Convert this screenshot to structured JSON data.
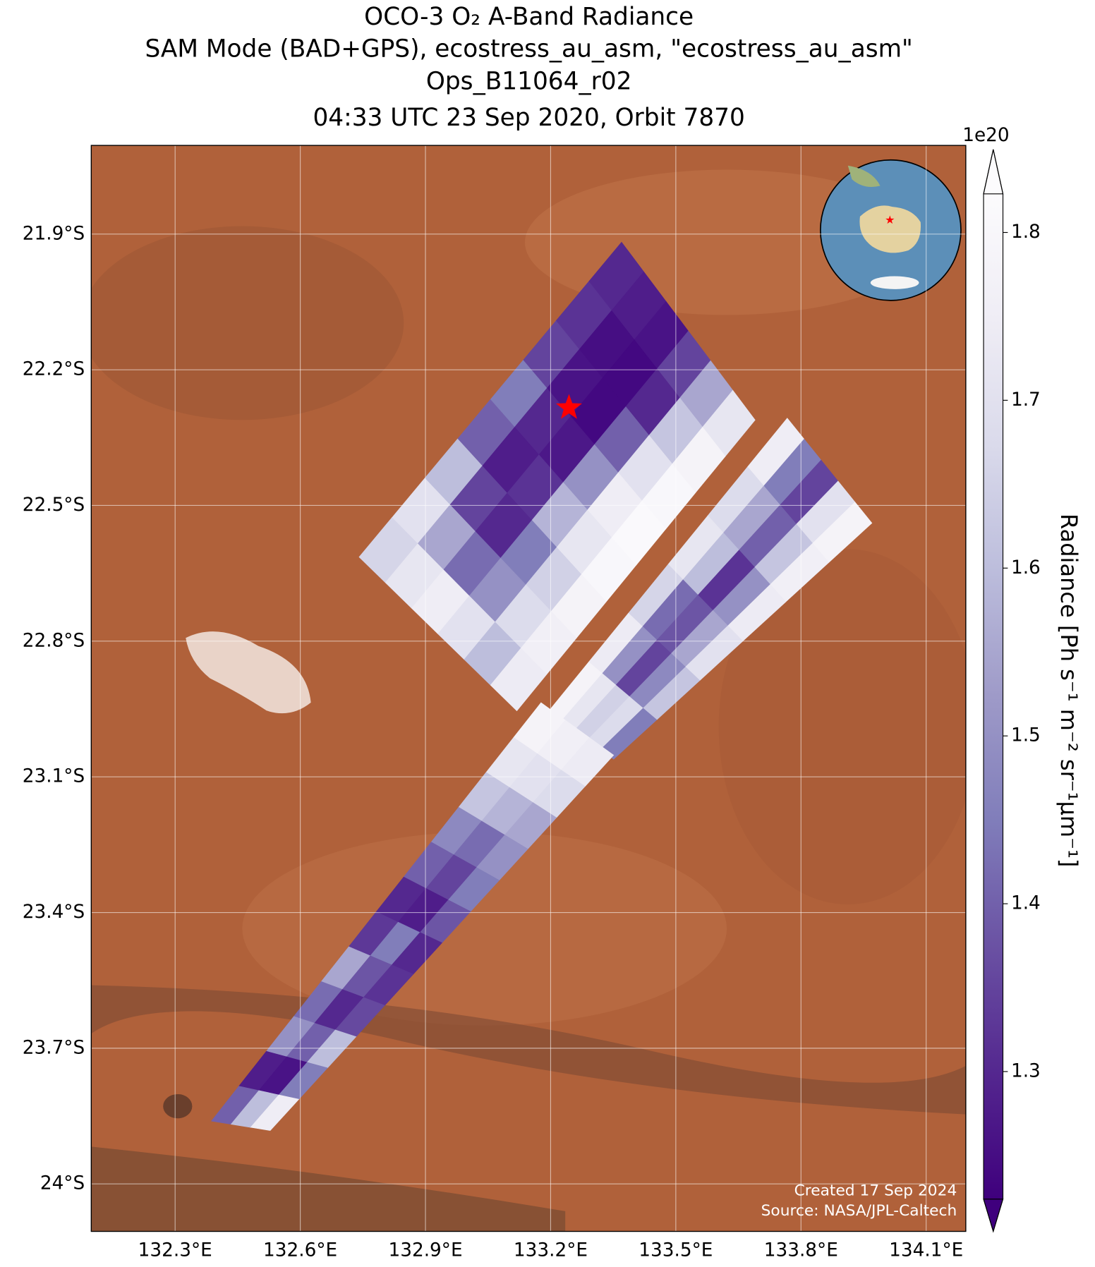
{
  "chart_data": {
    "type": "swath",
    "title": [
      "OCO-3 O₂ A-Band Radiance",
      "SAM Mode (BAD+GPS), ecostress_au_asm, \"ecostress_au_asm\"",
      "Ops_B11064_r02",
      "04:33 UTC 23 Sep 2020, Orbit 7870"
    ],
    "xlim": [
      132.099,
      134.195
    ],
    "ylim": [
      -24.105,
      -21.704
    ],
    "xticks": [
      {
        "value": 132.3,
        "label": "132.3°E"
      },
      {
        "value": 132.6,
        "label": "132.6°E"
      },
      {
        "value": 132.9,
        "label": "132.9°E"
      },
      {
        "value": 133.2,
        "label": "133.2°E"
      },
      {
        "value": 133.5,
        "label": "133.5°E"
      },
      {
        "value": 133.8,
        "label": "133.8°E"
      },
      {
        "value": 134.1,
        "label": "134.1°E"
      }
    ],
    "yticks": [
      {
        "value": -21.9,
        "label": "21.9°S"
      },
      {
        "value": -22.2,
        "label": "22.2°S"
      },
      {
        "value": -22.5,
        "label": "22.5°S"
      },
      {
        "value": -22.8,
        "label": "22.8°S"
      },
      {
        "value": -23.1,
        "label": "23.1°S"
      },
      {
        "value": -23.4,
        "label": "23.4°S"
      },
      {
        "value": -23.7,
        "label": "23.7°S"
      },
      {
        "value": -24,
        "label": "24°S"
      }
    ],
    "grid": true,
    "colormap": [
      "#3f007d",
      "#54278f",
      "#6a51a3",
      "#807dba",
      "#9e9ac8",
      "#bcbddc",
      "#dadaeb",
      "#efedf5",
      "#fcfbfd"
    ],
    "clim": [
      1.224,
      1.823
    ],
    "cticks": [
      1.3,
      1.4,
      1.5,
      1.6,
      1.7,
      1.8
    ],
    "colorbar_offset": "1e20",
    "colorbar_label": "Radiance [Ph s⁻¹ m⁻² sr⁻¹μm⁻¹]",
    "target": {
      "lon": 133.244,
      "lat": -22.284,
      "color": "#ff0000"
    },
    "credits": [
      "Created 17 Sep 2024",
      "Source: NASA/JPL-Caltech"
    ],
    "swaths": [
      {
        "corners": [
          [
            133.37,
            -21.918
          ],
          [
            133.69,
            -22.311
          ],
          [
            133.119,
            -22.954
          ],
          [
            132.741,
            -22.614
          ]
        ],
        "values": [
          [
            1.3,
            1.28,
            1.26,
            1.35,
            1.55,
            1.72
          ],
          [
            1.32,
            1.25,
            1.24,
            1.3,
            1.62,
            1.78
          ],
          [
            1.35,
            1.26,
            1.24,
            1.4,
            1.7,
            1.8
          ],
          [
            1.45,
            1.3,
            1.27,
            1.5,
            1.75,
            1.81
          ],
          [
            1.4,
            1.28,
            1.32,
            1.58,
            1.72,
            1.8
          ],
          [
            1.6,
            1.35,
            1.3,
            1.45,
            1.65,
            1.78
          ],
          [
            1.7,
            1.55,
            1.42,
            1.5,
            1.68,
            1.76
          ],
          [
            1.66,
            1.72,
            1.75,
            1.7,
            1.6,
            1.74
          ]
        ]
      },
      {
        "corners": [
          [
            133.767,
            -22.307
          ],
          [
            133.97,
            -22.539
          ],
          [
            133.351,
            -23.061
          ],
          [
            133.196,
            -22.954
          ]
        ],
        "values": [
          [
            1.75,
            1.45,
            1.35,
            1.7,
            1.78
          ],
          [
            1.68,
            1.55,
            1.4,
            1.62,
            1.76
          ],
          [
            1.72,
            1.6,
            1.32,
            1.5,
            1.74
          ],
          [
            1.66,
            1.42,
            1.38,
            1.55,
            1.7
          ],
          [
            1.74,
            1.5,
            1.35,
            1.48,
            1.62
          ],
          [
            1.78,
            1.72,
            1.65,
            1.68,
            1.45
          ]
        ]
      },
      {
        "corners": [
          [
            133.177,
            -22.936
          ],
          [
            133.351,
            -23.052
          ],
          [
            132.528,
            -23.882
          ],
          [
            132.387,
            -23.861
          ]
        ],
        "values": [
          [
            1.78,
            1.76,
            1.74
          ],
          [
            1.72,
            1.7,
            1.68
          ],
          [
            1.62,
            1.58,
            1.55
          ],
          [
            1.48,
            1.42,
            1.5
          ],
          [
            1.4,
            1.35,
            1.45
          ],
          [
            1.3,
            1.28,
            1.38
          ],
          [
            1.33,
            1.45,
            1.3
          ],
          [
            1.55,
            1.38,
            1.32
          ],
          [
            1.42,
            1.3,
            1.36
          ],
          [
            1.5,
            1.4,
            1.6
          ],
          [
            1.28,
            1.26,
            1.45
          ],
          [
            1.4,
            1.6,
            1.75
          ]
        ]
      }
    ]
  }
}
